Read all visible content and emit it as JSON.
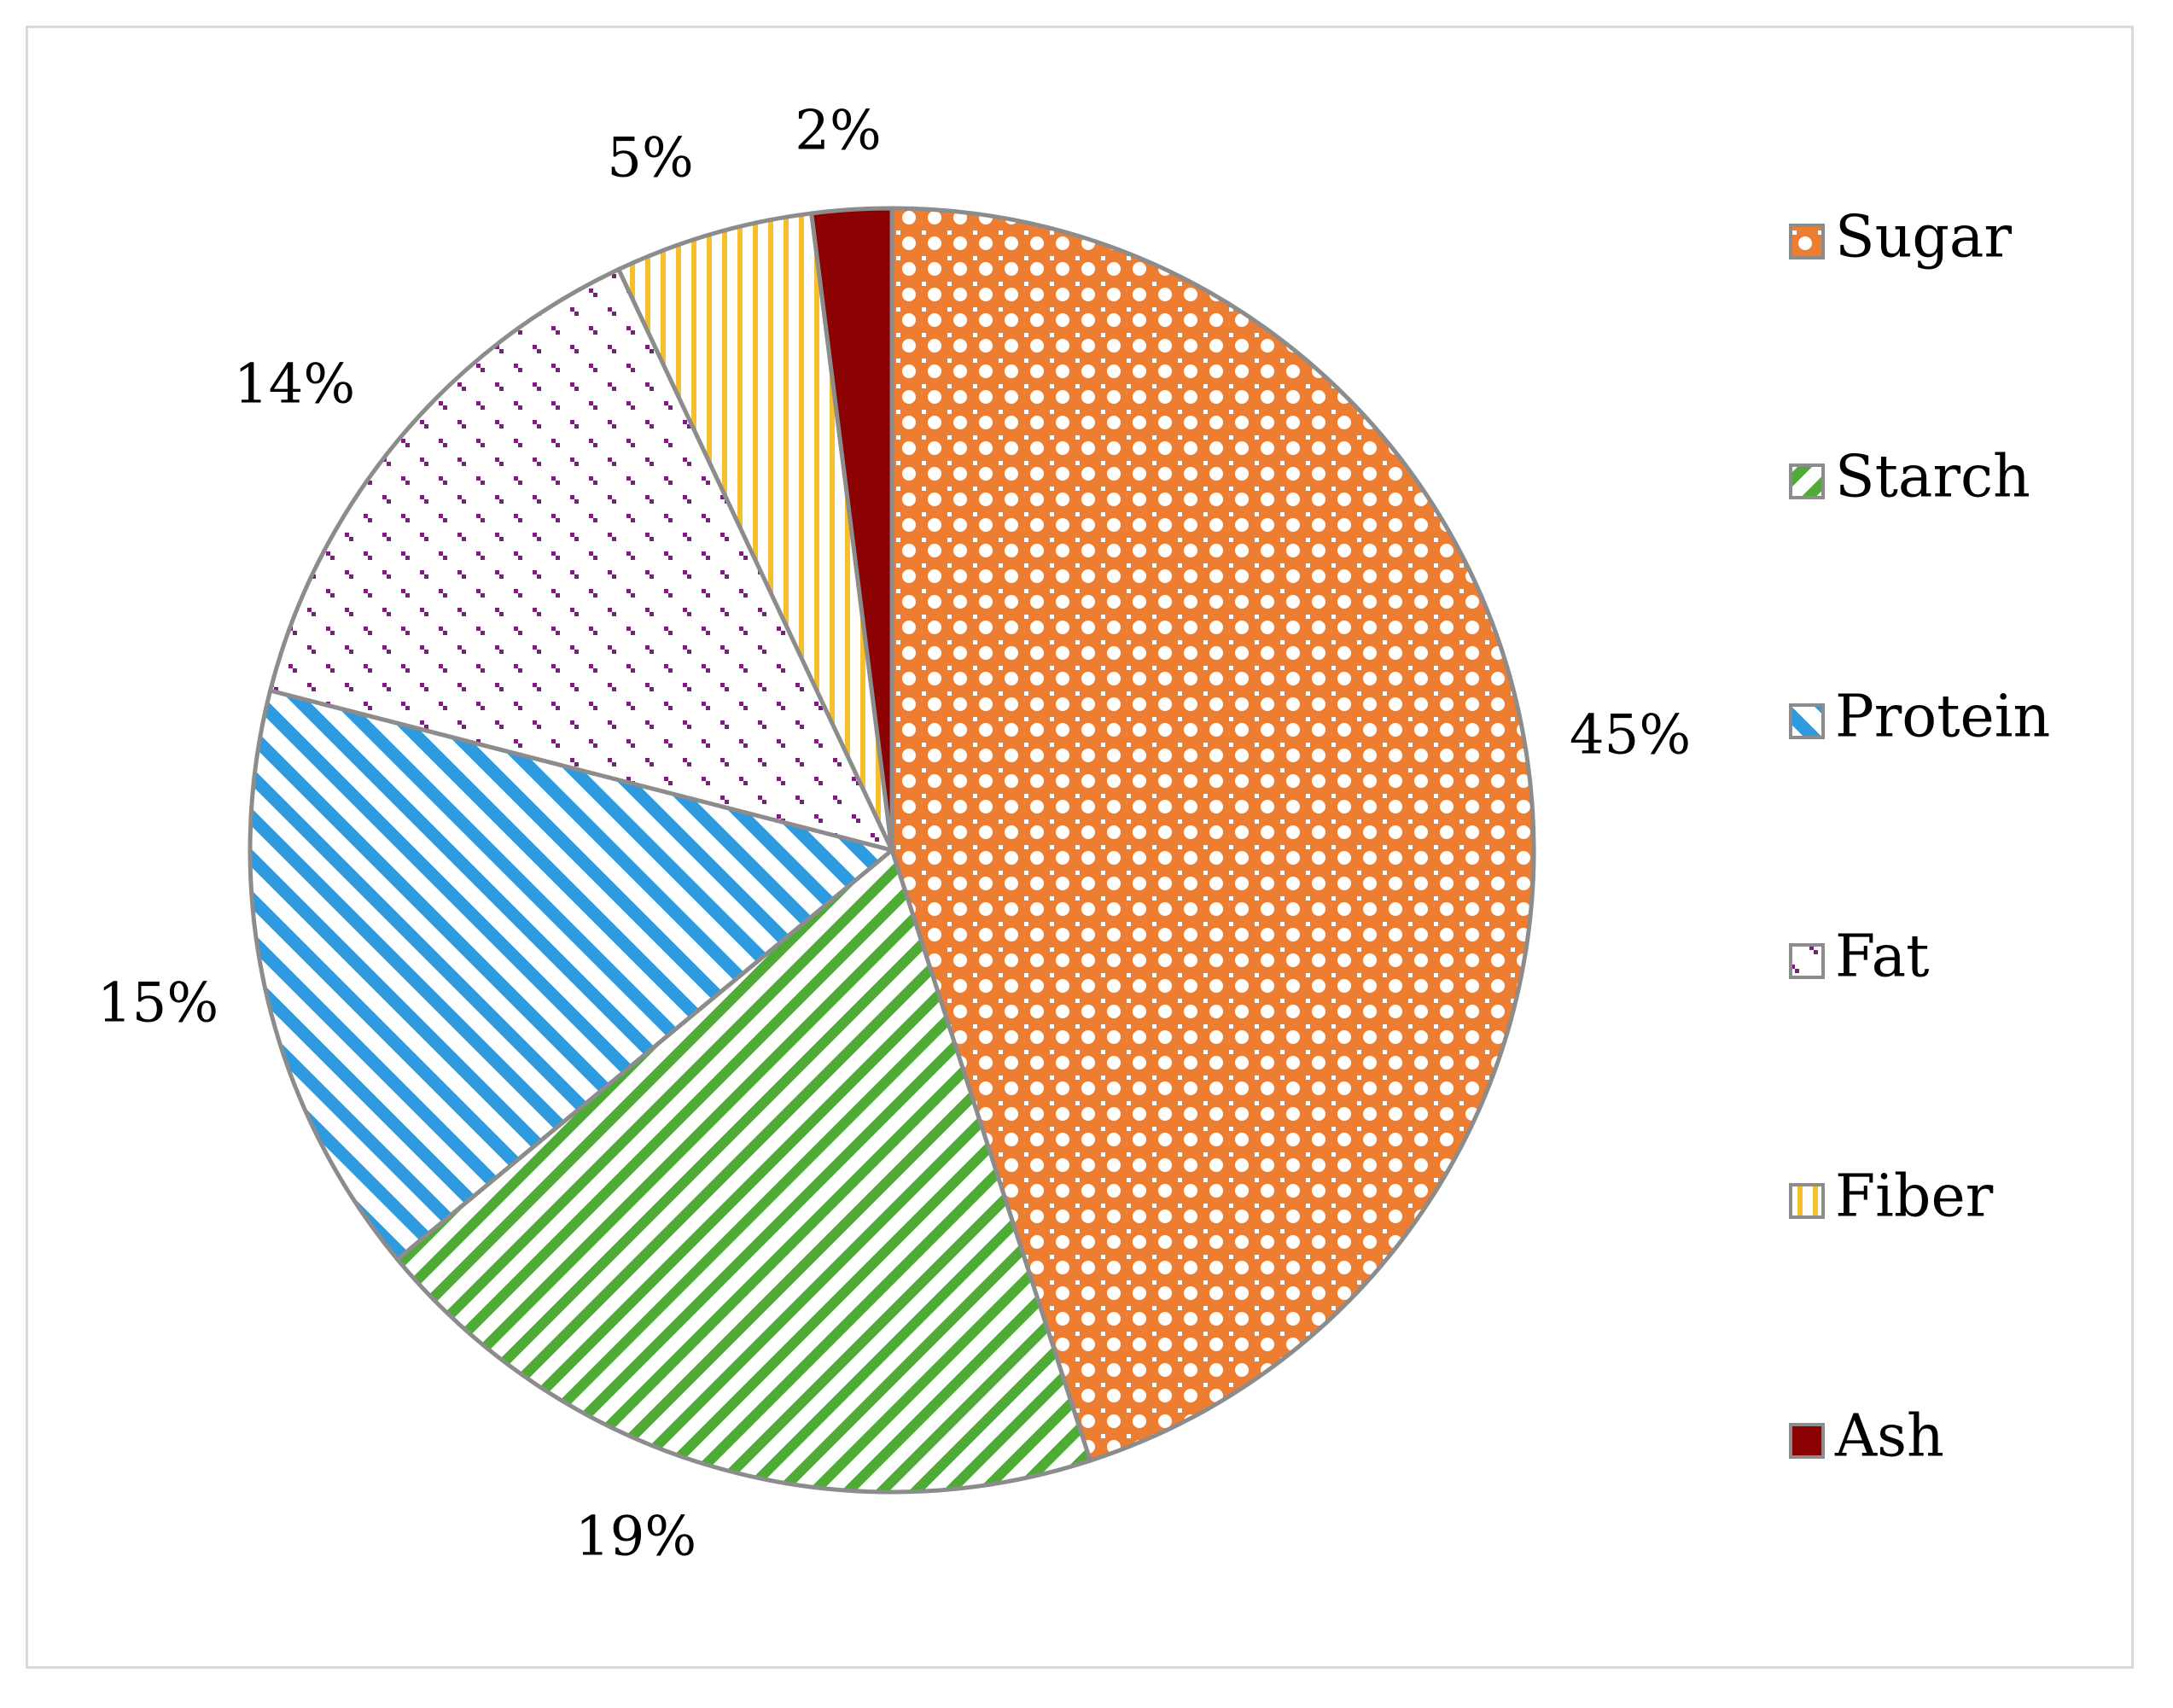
{
  "chart_data": {
    "type": "pie",
    "title": "",
    "categories": [
      "Sugar",
      "Starch",
      "Protein",
      "Fat",
      "Fiber",
      "Ash"
    ],
    "values": [
      45,
      19,
      15,
      14,
      5,
      2
    ],
    "data_labels": [
      "45%",
      "19%",
      "15%",
      "14%",
      "5%",
      "2%"
    ],
    "colors": [
      "#ed7d31",
      "#4eac36",
      "#2e9be0",
      "#7b1f7e",
      "#f6c02d",
      "#8b0000"
    ],
    "patterns": [
      "checker",
      "diagonal-up",
      "diagonal-down",
      "dots",
      "vertical",
      "solid"
    ],
    "legend_position": "right",
    "start_angle": "12 o'clock, clockwise"
  }
}
